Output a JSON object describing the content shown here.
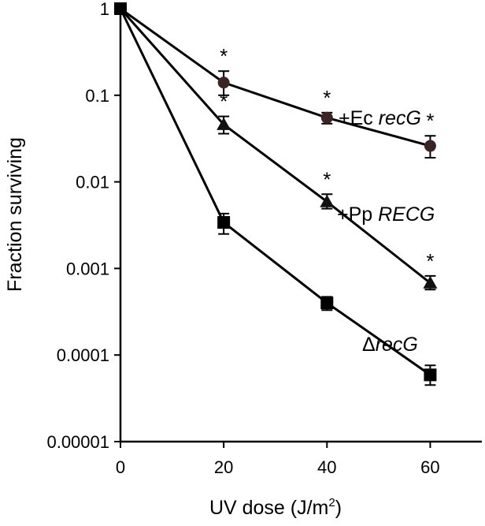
{
  "chart_data": {
    "type": "line",
    "title": "",
    "xlabel": "UV dose (J/m²)",
    "xlabel_main": "UV dose (J/m",
    "xlabel_sup": "2",
    "xlabel_end": ")",
    "ylabel": "Fraction surviving",
    "yscale": "log",
    "xlim": [
      0,
      70
    ],
    "ylim": [
      1e-05,
      1
    ],
    "x_ticks": [
      0,
      20,
      40,
      60
    ],
    "x_tick_labels": [
      "0",
      "20",
      "40",
      "60"
    ],
    "y_ticks": [
      1,
      0.1,
      0.01,
      0.001,
      0.0001,
      1e-05
    ],
    "y_tick_labels": [
      "1",
      "0.1",
      "0.01",
      "0.001",
      "0.0001",
      "0.00001"
    ],
    "grid": false,
    "legend": "none (direct labels)",
    "significance_marker": "*",
    "series": [
      {
        "name": "+Ec recG",
        "label_prefix": "+Ec ",
        "label_italic": "recG",
        "marker": "circle",
        "color": "#3a2426",
        "x": [
          0,
          20,
          40,
          60
        ],
        "y": [
          1,
          0.14,
          0.055,
          0.026
        ],
        "err_low": [
          1,
          0.1,
          0.047,
          0.019
        ],
        "err_high": [
          1,
          0.19,
          0.063,
          0.034
        ],
        "significant": [
          false,
          true,
          true,
          true
        ]
      },
      {
        "name": "+Pp RECG",
        "label_prefix": "+Pp ",
        "label_italic": "RECG",
        "marker": "triangle",
        "color": "#111111",
        "x": [
          0,
          20,
          40,
          60
        ],
        "y": [
          1,
          0.046,
          0.0059,
          0.00068
        ],
        "err_low": [
          1,
          0.036,
          0.0049,
          0.00057
        ],
        "err_high": [
          1,
          0.057,
          0.0072,
          0.00082
        ],
        "significant": [
          false,
          true,
          true,
          true
        ]
      },
      {
        "name": "ΔrecG",
        "label_prefix": "Δ",
        "label_italic": "recG",
        "marker": "square",
        "color": "#000000",
        "x": [
          0,
          20,
          40,
          60
        ],
        "y": [
          1,
          0.0034,
          0.0004,
          5.9e-05
        ],
        "err_low": [
          1,
          0.0025,
          0.00033,
          4.5e-05
        ],
        "err_high": [
          1,
          0.0043,
          0.00047,
          7.6e-05
        ],
        "significant": [
          false,
          false,
          false,
          false
        ]
      }
    ]
  }
}
